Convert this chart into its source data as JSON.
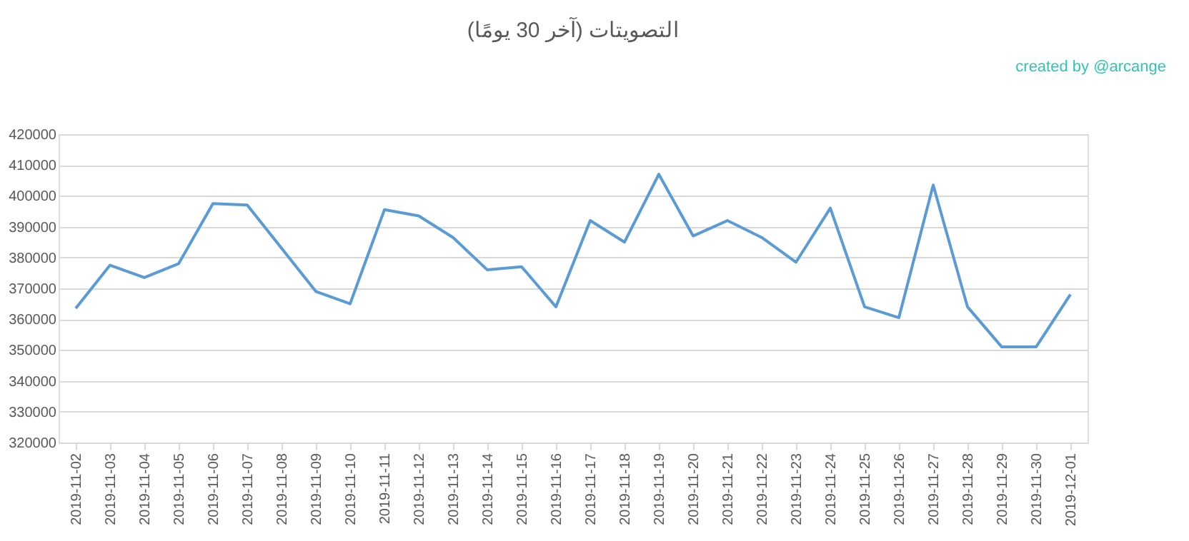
{
  "chart_data": {
    "type": "line",
    "title": "التصويتات (آخر 30 يومًا)",
    "annotations": [
      "created by @arcange"
    ],
    "categories": [
      "2019-11-02",
      "2019-11-03",
      "2019-11-04",
      "2019-11-05",
      "2019-11-06",
      "2019-11-07",
      "2019-11-08",
      "2019-11-09",
      "2019-11-10",
      "2019-11-11",
      "2019-11-12",
      "2019-11-13",
      "2019-11-14",
      "2019-11-15",
      "2019-11-16",
      "2019-11-17",
      "2019-11-18",
      "2019-11-19",
      "2019-11-20",
      "2019-11-21",
      "2019-11-22",
      "2019-11-23",
      "2019-11-24",
      "2019-11-25",
      "2019-11-26",
      "2019-11-27",
      "2019-11-28",
      "2019-11-29",
      "2019-11-30",
      "2019-12-01"
    ],
    "series": [
      {
        "color": "#5b9bd5",
        "values": [
          363500,
          377500,
          373500,
          378000,
          397500,
          397000,
          383000,
          369000,
          365000,
          395500,
          393500,
          386500,
          376000,
          377000,
          364000,
          392000,
          385000,
          407000,
          387000,
          392000,
          386500,
          378500,
          396000,
          364000,
          360500,
          403500,
          364000,
          351000,
          351000,
          368000
        ]
      }
    ],
    "ylim": [
      320000,
      420000
    ],
    "yticks": [
      320000,
      330000,
      340000,
      350000,
      360000,
      370000,
      380000,
      390000,
      400000,
      410000,
      420000
    ],
    "grid": "y",
    "marker": "none",
    "line_style": "solid"
  }
}
